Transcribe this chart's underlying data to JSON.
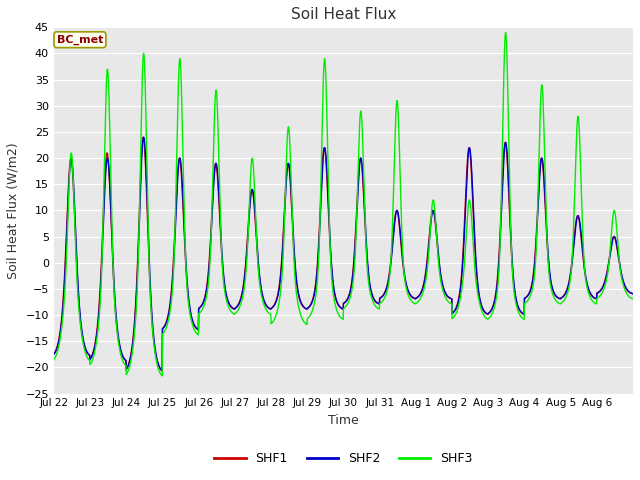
{
  "title": "Soil Heat Flux",
  "xlabel": "Time",
  "ylabel": "Soil Heat Flux (W/m2)",
  "ylim": [
    -25,
    45
  ],
  "yticks": [
    -25,
    -20,
    -15,
    -10,
    -5,
    0,
    5,
    10,
    15,
    20,
    25,
    30,
    35,
    40,
    45
  ],
  "xtick_labels": [
    "Jul 22",
    "Jul 23",
    "Jul 24",
    "Jul 25",
    "Jul 26",
    "Jul 27",
    "Jul 28",
    "Jul 29",
    "Jul 30",
    "Jul 31",
    "Aug 1",
    "Aug 2",
    "Aug 3",
    "Aug 4",
    "Aug 5",
    "Aug 6"
  ],
  "shf1_color": "#cc0000",
  "shf2_color": "#0000cc",
  "shf3_color": "#00ee00",
  "line_width": 1.0,
  "fig_bg_color": "#ffffff",
  "plot_bg_color": "#e8e8e8",
  "grid_color": "#ffffff",
  "annotation_text": "BC_met",
  "annotation_bg": "#fffff0",
  "annotation_border": "#999900",
  "annotation_text_color": "#880000",
  "legend_entries": [
    "SHF1",
    "SHF2",
    "SHF3"
  ]
}
